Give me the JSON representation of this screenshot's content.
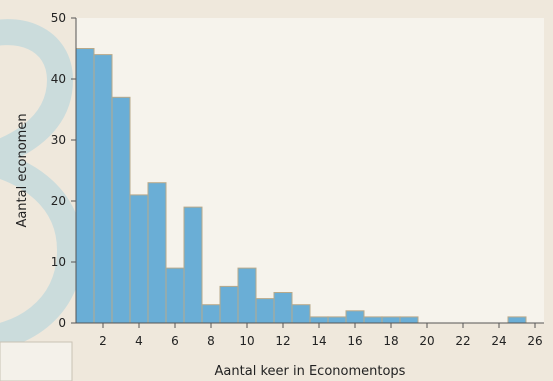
{
  "chart_data": {
    "type": "bar",
    "title": "",
    "xlabel": "Aantal keer in Economentops",
    "ylabel": "Aantal economen",
    "x_ticks": [
      2,
      4,
      6,
      8,
      10,
      12,
      14,
      16,
      18,
      20,
      22,
      24,
      26
    ],
    "y_ticks": [
      0,
      10,
      20,
      30,
      40,
      50
    ],
    "xlim": [
      0.5,
      26.5
    ],
    "ylim": [
      0,
      50
    ],
    "grid": false,
    "bins": [
      {
        "x": 1,
        "value": 45
      },
      {
        "x": 2,
        "value": 44
      },
      {
        "x": 3,
        "value": 37
      },
      {
        "x": 4,
        "value": 21
      },
      {
        "x": 5,
        "value": 23
      },
      {
        "x": 6,
        "value": 9
      },
      {
        "x": 7,
        "value": 19
      },
      {
        "x": 8,
        "value": 3
      },
      {
        "x": 9,
        "value": 6
      },
      {
        "x": 10,
        "value": 9
      },
      {
        "x": 11,
        "value": 4
      },
      {
        "x": 12,
        "value": 5
      },
      {
        "x": 13,
        "value": 3
      },
      {
        "x": 14,
        "value": 1
      },
      {
        "x": 15,
        "value": 1
      },
      {
        "x": 16,
        "value": 2
      },
      {
        "x": 17,
        "value": 1
      },
      {
        "x": 18,
        "value": 1
      },
      {
        "x": 19,
        "value": 1
      },
      {
        "x": 25,
        "value": 1
      }
    ]
  },
  "colors": {
    "background": "#efe8dc",
    "plot_area": "#f6f3ec",
    "bar_fill": "#6aaed6",
    "bar_stroke": "#b8a98a",
    "axis": "#555555",
    "decoration": "#b9d3d6"
  }
}
